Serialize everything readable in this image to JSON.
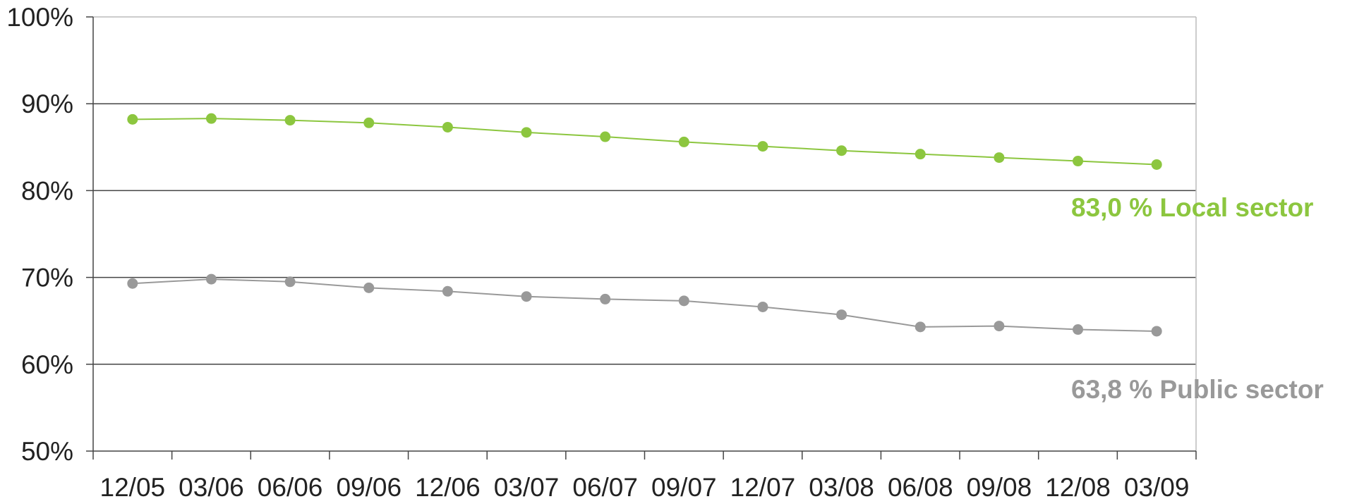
{
  "chart_data": {
    "type": "line",
    "title": "",
    "xlabel": "",
    "ylabel": "",
    "categories": [
      "12/05",
      "03/06",
      "06/06",
      "09/06",
      "12/06",
      "03/07",
      "06/07",
      "09/07",
      "12/07",
      "03/08",
      "06/08",
      "09/08",
      "12/08",
      "03/09"
    ],
    "y_ticks": [
      "50%",
      "60%",
      "70%",
      "80%",
      "90%",
      "100%"
    ],
    "ylim": [
      50,
      100
    ],
    "grid": true,
    "legend": "none",
    "series": [
      {
        "key": "local",
        "color": "#8CC63F",
        "values": [
          88.2,
          88.3,
          88.1,
          87.8,
          87.3,
          86.7,
          86.2,
          85.6,
          85.1,
          84.6,
          84.2,
          83.8,
          83.4,
          83.0
        ]
      },
      {
        "key": "public",
        "color": "#999999",
        "values": [
          69.3,
          69.8,
          69.5,
          68.8,
          68.4,
          67.8,
          67.5,
          67.3,
          66.6,
          65.7,
          64.3,
          64.4,
          64.0,
          63.8
        ]
      }
    ],
    "annotations": {
      "local": "83,0 % Local sector",
      "public": "63,8 % Public sector"
    }
  }
}
